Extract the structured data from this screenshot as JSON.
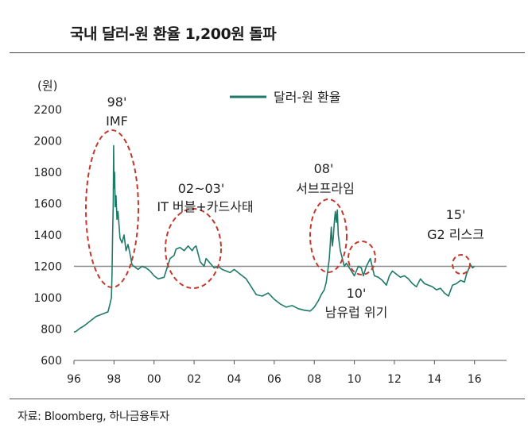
{
  "title": "국내 달러-원 환율 1,200원 돌파",
  "source": "자료: Bloomberg, 하나금융투자",
  "colors": {
    "line": "#1f7a6a",
    "reference": "#8a8a8a",
    "ellipse": "#c0392b",
    "axis": "#555555"
  },
  "chart_data": {
    "type": "line",
    "title": "국내 달러-원 환율 1,200원 돌파",
    "ylabel": "(원)",
    "xlabel": "",
    "ylim": [
      600,
      2200
    ],
    "yticks": [
      600,
      800,
      1000,
      1200,
      1400,
      1600,
      1800,
      2000,
      2200
    ],
    "xlim": [
      1996,
      2017.6
    ],
    "xticks": [
      {
        "value": 1996,
        "label": "96"
      },
      {
        "value": 1998,
        "label": "98"
      },
      {
        "value": 2000,
        "label": "00"
      },
      {
        "value": 2002,
        "label": "02"
      },
      {
        "value": 2004,
        "label": "04"
      },
      {
        "value": 2006,
        "label": "06"
      },
      {
        "value": 2008,
        "label": "08"
      },
      {
        "value": 2010,
        "label": "10"
      },
      {
        "value": 2012,
        "label": "12"
      },
      {
        "value": 2014,
        "label": "14"
      },
      {
        "value": 2016,
        "label": "16"
      }
    ],
    "reference_line": 1200,
    "legend": {
      "position": "top-right"
    },
    "series": [
      {
        "name": "달러-원 환율",
        "x": [
          1996.0,
          1996.1,
          1996.3,
          1996.5,
          1996.7,
          1996.9,
          1997.1,
          1997.3,
          1997.5,
          1997.7,
          1997.8,
          1997.87,
          1997.9,
          1997.93,
          1997.96,
          1997.98,
          1998.0,
          1998.03,
          1998.06,
          1998.1,
          1998.15,
          1998.2,
          1998.3,
          1998.4,
          1998.5,
          1998.6,
          1998.7,
          1998.8,
          1998.9,
          1999.0,
          1999.2,
          1999.4,
          1999.6,
          1999.8,
          2000.0,
          2000.2,
          2000.5,
          2000.8,
          2001.0,
          2001.1,
          2001.3,
          2001.5,
          2001.7,
          2001.9,
          2002.0,
          2002.1,
          2002.3,
          2002.5,
          2002.6,
          2002.8,
          2003.0,
          2003.2,
          2003.4,
          2003.6,
          2003.8,
          2004.0,
          2004.3,
          2004.6,
          2004.9,
          2005.1,
          2005.4,
          2005.7,
          2006.0,
          2006.3,
          2006.6,
          2006.9,
          2007.2,
          2007.5,
          2007.8,
          2008.0,
          2008.2,
          2008.35,
          2008.5,
          2008.6,
          2008.7,
          2008.75,
          2008.8,
          2008.85,
          2008.9,
          2008.95,
          2009.0,
          2009.05,
          2009.1,
          2009.15,
          2009.2,
          2009.25,
          2009.3,
          2009.4,
          2009.5,
          2009.6,
          2009.8,
          2010.0,
          2010.2,
          2010.35,
          2010.45,
          2010.6,
          2010.8,
          2011.0,
          2011.2,
          2011.4,
          2011.6,
          2011.75,
          2011.9,
          2012.1,
          2012.3,
          2012.5,
          2012.7,
          2012.9,
          2013.1,
          2013.3,
          2013.5,
          2013.7,
          2013.9,
          2014.1,
          2014.3,
          2014.5,
          2014.7,
          2014.9,
          2015.1,
          2015.3,
          2015.5,
          2015.6,
          2015.7,
          2015.8,
          2015.9,
          2016.0
        ],
        "values": [
          780,
          785,
          805,
          820,
          840,
          860,
          880,
          890,
          900,
          910,
          960,
          1000,
          1150,
          1400,
          1600,
          1970,
          1700,
          1800,
          1580,
          1650,
          1500,
          1550,
          1380,
          1350,
          1400,
          1300,
          1340,
          1280,
          1210,
          1200,
          1180,
          1200,
          1190,
          1170,
          1140,
          1120,
          1130,
          1250,
          1270,
          1310,
          1320,
          1300,
          1330,
          1300,
          1320,
          1330,
          1230,
          1200,
          1250,
          1220,
          1190,
          1200,
          1180,
          1170,
          1160,
          1180,
          1150,
          1120,
          1060,
          1020,
          1010,
          1030,
          990,
          960,
          940,
          950,
          930,
          920,
          915,
          940,
          980,
          1020,
          1050,
          1100,
          1200,
          1250,
          1350,
          1450,
          1330,
          1380,
          1480,
          1550,
          1480,
          1560,
          1400,
          1350,
          1300,
          1250,
          1200,
          1220,
          1180,
          1140,
          1200,
          1190,
          1140,
          1200,
          1250,
          1140,
          1130,
          1110,
          1080,
          1140,
          1170,
          1150,
          1130,
          1140,
          1120,
          1090,
          1070,
          1120,
          1090,
          1080,
          1070,
          1050,
          1060,
          1030,
          1010,
          1080,
          1090,
          1110,
          1100,
          1150,
          1180,
          1210,
          1190,
          1200
        ]
      }
    ],
    "annotations": [
      {
        "text": "98'",
        "id": "imf-year"
      },
      {
        "text": "IMF",
        "id": "imf-label"
      },
      {
        "text": "02~03'",
        "id": "it-year"
      },
      {
        "text": "IT 버블+카드사태",
        "id": "it-label"
      },
      {
        "text": "08'",
        "id": "subprime-year"
      },
      {
        "text": "서브프라임",
        "id": "subprime-label"
      },
      {
        "text": "10'",
        "id": "europe-year"
      },
      {
        "text": "남유럽 위기",
        "id": "europe-label"
      },
      {
        "text": "15'",
        "id": "g2-year"
      },
      {
        "text": "G2 리스크",
        "id": "g2-label"
      }
    ]
  }
}
